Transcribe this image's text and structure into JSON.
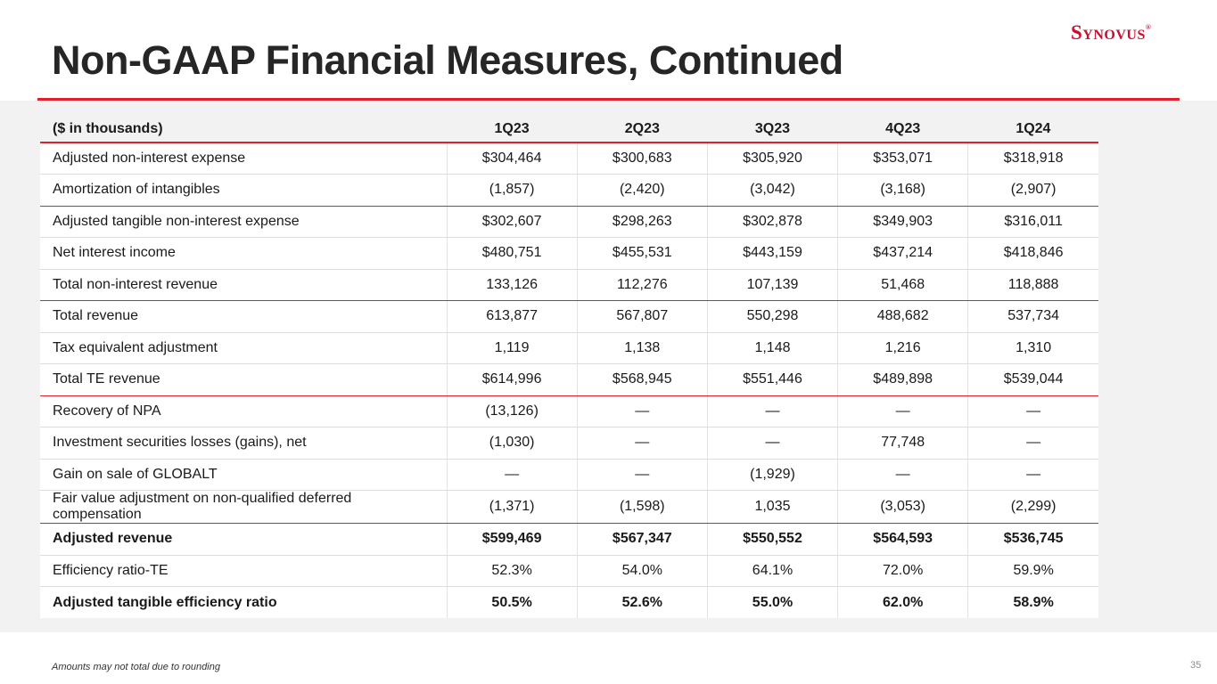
{
  "header": {
    "title": "Non-GAAP Financial Measures, Continued",
    "logo_text": "Synovus",
    "logo_mark": "®"
  },
  "colors": {
    "accent": "#e2202c",
    "logo": "#c8102e",
    "band": "#f2f2f2"
  },
  "table": {
    "columns": [
      "($ in thousands)",
      "1Q23",
      "2Q23",
      "3Q23",
      "4Q23",
      "1Q24"
    ],
    "rows": [
      {
        "label": "Adjusted non-interest expense",
        "values": [
          "$304,464",
          "$300,683",
          "$305,920",
          "$353,071",
          "$318,918"
        ]
      },
      {
        "label": "Amortization of intangibles",
        "values": [
          "(1,857)",
          "(2,420)",
          "(3,042)",
          "(3,168)",
          "(2,907)"
        ]
      },
      {
        "label": "Adjusted tangible non-interest expense",
        "values": [
          "$302,607",
          "$298,263",
          "$302,878",
          "$349,903",
          "$316,011"
        ]
      },
      {
        "label": "Net interest income",
        "values": [
          "$480,751",
          "$455,531",
          "$443,159",
          "$437,214",
          "$418,846"
        ]
      },
      {
        "label": "Total non-interest revenue",
        "values": [
          "133,126",
          "112,276",
          "107,139",
          "51,468",
          "118,888"
        ]
      },
      {
        "label": "Total revenue",
        "values": [
          "613,877",
          "567,807",
          "550,298",
          "488,682",
          "537,734"
        ]
      },
      {
        "label": "Tax equivalent adjustment",
        "values": [
          "1,119",
          "1,138",
          "1,148",
          "1,216",
          "1,310"
        ]
      },
      {
        "label": "Total TE revenue",
        "values": [
          "$614,996",
          "$568,945",
          "$551,446",
          "$489,898",
          "$539,044"
        ]
      },
      {
        "label": "Recovery of NPA",
        "values": [
          "(13,126)",
          "—",
          "—",
          "—",
          "—"
        ]
      },
      {
        "label": "Investment securities losses (gains), net",
        "values": [
          "(1,030)",
          "—",
          "—",
          "77,748",
          "—"
        ]
      },
      {
        "label": "Gain on sale of GLOBALT",
        "values": [
          "—",
          "—",
          "(1,929)",
          "—",
          "—"
        ]
      },
      {
        "label": "Fair value adjustment on non-qualified deferred compensation",
        "values": [
          "(1,371)",
          "(1,598)",
          "1,035",
          "(3,053)",
          "(2,299)"
        ]
      },
      {
        "label": "Adjusted revenue",
        "values": [
          "$599,469",
          "$567,347",
          "$550,552",
          "$564,593",
          "$536,745"
        ]
      },
      {
        "label": "Efficiency ratio-TE",
        "values": [
          "52.3%",
          "54.0%",
          "64.1%",
          "72.0%",
          "59.9%"
        ]
      },
      {
        "label": "Adjusted tangible efficiency ratio",
        "values": [
          "50.5%",
          "52.6%",
          "55.0%",
          "62.0%",
          "58.9%"
        ]
      }
    ]
  },
  "footer": {
    "note": "Amounts may not total due to rounding",
    "page_number": "35"
  }
}
